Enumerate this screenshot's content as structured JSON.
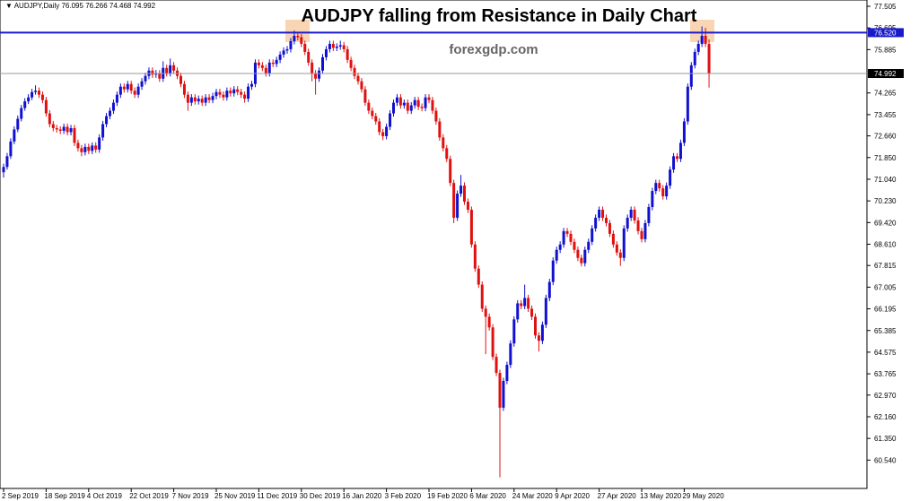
{
  "chart_data": {
    "type": "candlestick",
    "title": "AUDJPY falling from Resistance in Daily Chart",
    "watermark": "forexgdp.com",
    "symbol": "AUDJPY,Daily",
    "up_color": "#1010d0",
    "down_color": "#e01010",
    "resistance": {
      "value": 76.52,
      "label": "76.520"
    },
    "resistance_color": "#1a1acc",
    "ylim": [
      59.48,
      77.74
    ],
    "yticks": [
      77.505,
      76.695,
      75.885,
      74.265,
      73.455,
      {
        "value": 72.66,
        "label": "72.660"
      },
      {
        "value": 71.85,
        "label": "71.850"
      },
      {
        "value": 71.04,
        "label": "71.040"
      },
      {
        "value": 70.23,
        "label": "70.230"
      },
      {
        "value": 69.42,
        "label": "69.420"
      },
      {
        "value": 68.61,
        "label": "68.610"
      },
      67.815,
      67.005,
      66.195,
      65.385,
      64.575,
      63.765,
      {
        "value": 62.97,
        "label": "62.970"
      },
      {
        "value": 62.16,
        "label": "62.160"
      },
      {
        "value": 61.35,
        "label": "61.350"
      },
      {
        "value": 60.54,
        "label": "60.540"
      }
    ],
    "categories": [
      "2 Sep 2019",
      null,
      null,
      null,
      null,
      null,
      null,
      null,
      null,
      null,
      null,
      null,
      "18 Sep 2019",
      null,
      null,
      null,
      null,
      null,
      null,
      null,
      null,
      null,
      null,
      null,
      "4 Oct 2019",
      null,
      null,
      null,
      null,
      null,
      null,
      null,
      null,
      null,
      null,
      null,
      "22 Oct 2019",
      null,
      null,
      null,
      null,
      null,
      null,
      null,
      null,
      null,
      null,
      null,
      "7 Nov 2019",
      null,
      null,
      null,
      null,
      null,
      null,
      null,
      null,
      null,
      null,
      null,
      "25 Nov 2019",
      null,
      null,
      null,
      null,
      null,
      null,
      null,
      null,
      null,
      null,
      null,
      "11 Dec 2019",
      null,
      null,
      null,
      null,
      null,
      null,
      null,
      null,
      null,
      null,
      null,
      "30 Dec 2019",
      null,
      null,
      null,
      null,
      null,
      null,
      null,
      null,
      null,
      null,
      null,
      "16 Jan 2020",
      null,
      null,
      null,
      null,
      null,
      null,
      null,
      null,
      null,
      null,
      null,
      "3 Feb 2020",
      null,
      null,
      null,
      null,
      null,
      null,
      null,
      null,
      null,
      null,
      null,
      "19 Feb 2020",
      null,
      null,
      null,
      null,
      null,
      null,
      null,
      null,
      null,
      null,
      null,
      "6 Mar 2020",
      null,
      null,
      null,
      null,
      null,
      null,
      null,
      null,
      null,
      null,
      null,
      "24 Mar 2020",
      null,
      null,
      null,
      null,
      null,
      null,
      null,
      null,
      null,
      null,
      null,
      "9 Apr 2020",
      null,
      null,
      null,
      null,
      null,
      null,
      null,
      null,
      null,
      null,
      null,
      "27 Apr 2020",
      null,
      null,
      null,
      null,
      null,
      null,
      null,
      null,
      null,
      null,
      null,
      "13 May 2020",
      null,
      null,
      null,
      null,
      null,
      null,
      null,
      null,
      null,
      null,
      null,
      "29 May 2020",
      null,
      null,
      null,
      null,
      null,
      null,
      null
    ],
    "open": [
      71.3,
      71.5,
      71.9,
      72.45,
      72.9,
      73.3,
      73.7,
      73.95,
      74.1,
      74.3,
      74.35,
      74.2,
      74.0,
      73.5,
      73.1,
      72.95,
      72.9,
      72.85,
      73.0,
      72.8,
      72.95,
      72.4,
      72.2,
      72.05,
      72.25,
      72.1,
      72.3,
      72.15,
      72.6,
      73.1,
      73.4,
      73.6,
      73.9,
      74.2,
      74.5,
      74.4,
      74.6,
      74.35,
      74.2,
      74.5,
      74.7,
      74.9,
      75.1,
      74.95,
      75.0,
      74.8,
      75.2,
      75.0,
      75.3,
      75.1,
      74.9,
      74.6,
      74.2,
      73.9,
      74.1,
      73.95,
      74.05,
      73.9,
      74.1,
      74.0,
      74.15,
      74.3,
      74.2,
      74.1,
      74.35,
      74.25,
      74.4,
      74.3,
      74.2,
      74.05,
      74.5,
      74.6,
      75.4,
      75.3,
      75.2,
      75.0,
      75.4,
      75.35,
      75.5,
      75.7,
      75.85,
      75.9,
      76.2,
      76.4,
      76.35,
      76.1,
      75.8,
      75.4,
      75.0,
      74.8,
      75.1,
      75.6,
      75.9,
      76.1,
      75.95,
      76.0,
      76.05,
      75.9,
      75.5,
      75.2,
      74.9,
      74.7,
      74.4,
      73.9,
      73.6,
      73.4,
      73.2,
      72.8,
      72.65,
      73.0,
      73.5,
      73.9,
      74.1,
      73.8,
      73.9,
      73.6,
      73.8,
      74.0,
      73.75,
      73.7,
      74.1,
      74.0,
      73.6,
      73.2,
      72.6,
      72.2,
      71.8,
      70.9,
      69.6,
      70.5,
      70.8,
      70.2,
      69.9,
      68.6,
      67.7,
      67.1,
      66.2,
      65.9,
      65.5,
      64.4,
      63.8,
      62.5,
      63.5,
      64.1,
      64.9,
      65.8,
      66.4,
      66.3,
      66.6,
      66.2,
      65.9,
      65.2,
      65.0,
      65.6,
      66.6,
      67.2,
      68.0,
      68.4,
      68.6,
      69.1,
      69.0,
      68.7,
      68.4,
      68.1,
      67.9,
      68.4,
      68.7,
      69.2,
      69.6,
      69.9,
      69.6,
      69.4,
      69.0,
      68.6,
      68.3,
      68.1,
      69.2,
      69.6,
      69.9,
      69.5,
      69.1,
      68.8,
      69.4,
      70.0,
      70.6,
      70.9,
      70.7,
      70.4,
      70.8,
      71.4,
      71.9,
      71.8,
      72.4,
      73.2,
      74.5,
      75.3,
      75.8,
      76.1,
      76.4,
      76.095
    ],
    "high": [
      71.62,
      72.02,
      72.57,
      73.02,
      73.42,
      73.82,
      74.07,
      74.22,
      74.42,
      74.55,
      74.47,
      74.32,
      74.12,
      73.62,
      73.22,
      73.07,
      73.02,
      73.12,
      73.12,
      73.07,
      73.07,
      72.52,
      72.32,
      72.37,
      72.37,
      72.42,
      72.42,
      72.72,
      73.22,
      73.52,
      73.72,
      74.02,
      74.32,
      74.62,
      74.62,
      74.72,
      74.72,
      74.47,
      74.62,
      74.82,
      75.02,
      75.22,
      75.22,
      75.12,
      75.12,
      75.45,
      75.32,
      75.55,
      75.42,
      75.22,
      75.02,
      74.72,
      74.32,
      74.22,
      74.22,
      74.17,
      74.17,
      74.22,
      74.22,
      74.27,
      74.42,
      74.42,
      74.32,
      74.47,
      74.47,
      74.52,
      74.52,
      74.42,
      74.32,
      74.62,
      74.72,
      75.52,
      75.52,
      75.42,
      75.32,
      75.52,
      75.52,
      75.62,
      75.82,
      75.97,
      76.02,
      76.32,
      76.6,
      76.52,
      76.47,
      76.22,
      75.92,
      75.52,
      75.12,
      75.22,
      75.72,
      76.02,
      76.22,
      76.22,
      76.12,
      76.22,
      76.17,
      76.02,
      75.62,
      75.32,
      75.02,
      74.82,
      74.52,
      74.02,
      73.72,
      73.52,
      73.32,
      72.92,
      73.12,
      73.62,
      74.02,
      74.22,
      74.22,
      74.02,
      74.02,
      73.92,
      74.12,
      74.12,
      73.87,
      74.22,
      74.22,
      74.12,
      73.72,
      73.32,
      72.72,
      72.32,
      71.92,
      71.02,
      70.62,
      71.2,
      70.92,
      70.32,
      70.02,
      68.72,
      67.82,
      67.22,
      66.32,
      66.02,
      65.62,
      64.52,
      63.92,
      63.62,
      64.22,
      65.02,
      65.92,
      66.52,
      66.52,
      67.1,
      66.72,
      66.32,
      66.02,
      65.32,
      65.72,
      66.72,
      67.32,
      68.12,
      68.52,
      68.72,
      69.22,
      69.22,
      69.12,
      68.82,
      68.52,
      68.22,
      68.52,
      68.82,
      69.32,
      69.72,
      70.02,
      70.02,
      69.72,
      69.52,
      69.12,
      68.72,
      68.42,
      69.32,
      69.72,
      70.02,
      70.02,
      69.62,
      69.22,
      69.52,
      70.12,
      70.72,
      71.02,
      71.02,
      70.82,
      70.92,
      71.52,
      72.02,
      72.02,
      72.52,
      73.32,
      74.62,
      75.42,
      75.92,
      76.22,
      76.75,
      76.7,
      76.266
    ],
    "low": [
      71.1,
      71.4,
      71.8,
      72.35,
      72.8,
      73.2,
      73.6,
      73.85,
      74.0,
      74.2,
      74.08,
      73.88,
      73.38,
      72.98,
      72.83,
      72.78,
      72.73,
      72.73,
      72.68,
      72.68,
      72.28,
      72.08,
      71.9,
      71.93,
      71.98,
      71.98,
      72.03,
      72.03,
      72.48,
      72.98,
      73.28,
      73.48,
      73.78,
      74.08,
      74.28,
      74.28,
      74.23,
      74.08,
      74.08,
      74.38,
      74.58,
      74.78,
      74.83,
      74.83,
      74.68,
      74.68,
      74.88,
      74.88,
      74.98,
      74.78,
      74.48,
      74.08,
      73.6,
      73.78,
      73.83,
      73.83,
      73.78,
      73.78,
      73.88,
      73.88,
      74.03,
      74.08,
      73.98,
      73.98,
      74.13,
      74.13,
      74.18,
      74.08,
      73.9,
      73.93,
      74.38,
      74.48,
      75.18,
      75.08,
      74.88,
      74.88,
      75.23,
      75.23,
      75.38,
      75.58,
      75.73,
      75.78,
      76.08,
      76.23,
      75.98,
      75.68,
      75.28,
      74.7,
      74.2,
      74.68,
      74.98,
      75.48,
      75.78,
      75.83,
      75.83,
      75.88,
      75.78,
      75.38,
      75.08,
      74.78,
      74.58,
      74.28,
      73.78,
      73.48,
      73.28,
      73.08,
      72.68,
      72.5,
      72.53,
      72.88,
      73.38,
      73.78,
      73.68,
      73.68,
      73.48,
      73.48,
      73.68,
      73.63,
      73.58,
      73.58,
      73.88,
      73.48,
      73.08,
      72.48,
      72.08,
      71.68,
      70.78,
      69.4,
      69.48,
      70.38,
      70.08,
      69.78,
      68.48,
      67.58,
      66.98,
      66.08,
      64.5,
      65.38,
      64.28,
      63.68,
      59.9,
      62.38,
      63.38,
      63.98,
      64.78,
      65.68,
      66.18,
      66.18,
      66.08,
      65.78,
      65.08,
      64.6,
      64.88,
      65.48,
      66.48,
      67.08,
      67.88,
      68.28,
      68.48,
      68.88,
      68.58,
      68.28,
      67.98,
      67.78,
      67.78,
      68.28,
      68.58,
      69.08,
      69.48,
      69.48,
      69.28,
      68.88,
      68.48,
      68.18,
      67.8,
      67.98,
      69.08,
      69.48,
      69.38,
      68.98,
      68.68,
      68.68,
      69.28,
      69.88,
      70.48,
      70.58,
      70.28,
      70.28,
      70.68,
      71.28,
      71.68,
      71.68,
      72.28,
      73.08,
      74.38,
      75.18,
      75.68,
      75.98,
      75.98,
      74.468
    ],
    "close": [
      71.5,
      71.9,
      72.45,
      72.9,
      73.3,
      73.7,
      73.95,
      74.1,
      74.3,
      74.35,
      74.2,
      74.0,
      73.5,
      73.1,
      72.95,
      72.9,
      72.85,
      73.0,
      72.8,
      72.95,
      72.4,
      72.2,
      72.05,
      72.25,
      72.1,
      72.3,
      72.15,
      72.6,
      73.1,
      73.4,
      73.6,
      73.9,
      74.2,
      74.5,
      74.4,
      74.6,
      74.35,
      74.2,
      74.5,
      74.7,
      74.9,
      75.1,
      74.95,
      75.0,
      74.8,
      75.2,
      75.0,
      75.3,
      75.1,
      74.9,
      74.6,
      74.2,
      73.9,
      74.1,
      73.95,
      74.05,
      73.9,
      74.1,
      74.0,
      74.15,
      74.3,
      74.2,
      74.1,
      74.35,
      74.25,
      74.4,
      74.3,
      74.2,
      74.05,
      74.5,
      74.6,
      75.4,
      75.3,
      75.2,
      75.0,
      75.4,
      75.35,
      75.5,
      75.7,
      75.85,
      75.9,
      76.2,
      76.4,
      76.35,
      76.1,
      75.8,
      75.4,
      75.0,
      74.8,
      75.1,
      75.6,
      75.9,
      76.1,
      75.95,
      76.0,
      76.05,
      75.9,
      75.5,
      75.2,
      74.9,
      74.7,
      74.4,
      73.9,
      73.6,
      73.4,
      73.2,
      72.8,
      72.65,
      73.0,
      73.5,
      73.9,
      74.1,
      73.8,
      73.9,
      73.6,
      73.8,
      74.0,
      73.75,
      73.7,
      74.1,
      74.0,
      73.6,
      73.2,
      72.6,
      72.2,
      71.8,
      70.9,
      69.6,
      70.5,
      70.8,
      70.2,
      69.9,
      68.6,
      67.7,
      67.1,
      66.2,
      65.9,
      65.5,
      64.4,
      63.8,
      62.5,
      63.5,
      64.1,
      64.9,
      65.8,
      66.4,
      66.3,
      66.6,
      66.2,
      65.9,
      65.2,
      65.0,
      65.6,
      66.6,
      67.2,
      68.0,
      68.4,
      68.6,
      69.1,
      69.0,
      68.7,
      68.4,
      68.1,
      67.9,
      68.4,
      68.7,
      69.2,
      69.6,
      69.9,
      69.6,
      69.4,
      69.0,
      68.6,
      68.3,
      68.1,
      69.2,
      69.6,
      69.9,
      69.5,
      69.1,
      68.8,
      69.4,
      70.0,
      70.6,
      70.9,
      70.7,
      70.4,
      70.8,
      71.4,
      71.9,
      71.8,
      72.4,
      73.2,
      74.5,
      75.3,
      75.8,
      76.1,
      76.4,
      76.1,
      74.992
    ]
  }
}
